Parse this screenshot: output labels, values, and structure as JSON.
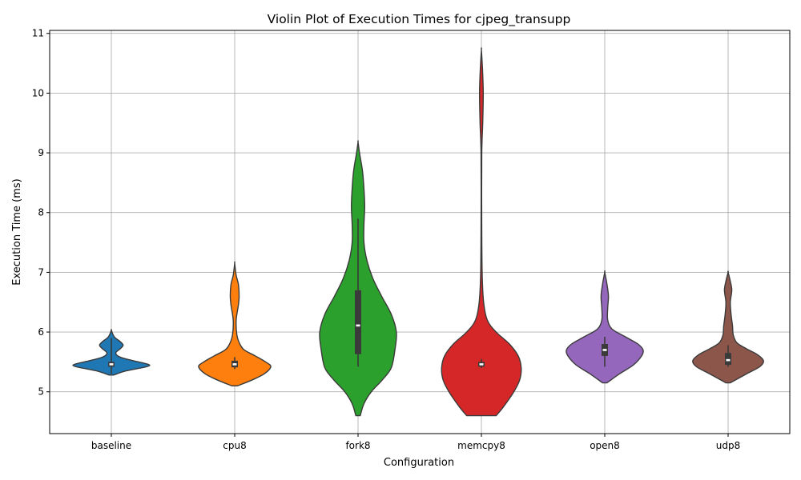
{
  "chart_data": {
    "type": "violin",
    "title": "Violin Plot of Execution Times for cjpeg_transupp",
    "xlabel": "Configuration",
    "ylabel": "Execution Time (ms)",
    "ylim": [
      4.3,
      11.05
    ],
    "yticks": [
      5,
      6,
      7,
      8,
      9,
      10,
      11
    ],
    "grid": true,
    "categories": [
      "baseline",
      "cpu8",
      "fork8",
      "memcpy8",
      "open8",
      "udp8"
    ],
    "series": [
      {
        "category": "baseline",
        "color": "#1f77b4",
        "min": 5.3,
        "q1": 5.42,
        "median": 5.46,
        "q3": 5.5,
        "max": 5.9,
        "range": [
          5.28,
          6.03
        ],
        "density": [
          [
            5.28,
            0.03
          ],
          [
            5.35,
            0.2
          ],
          [
            5.42,
            0.48
          ],
          [
            5.46,
            0.5
          ],
          [
            5.52,
            0.3
          ],
          [
            5.58,
            0.12
          ],
          [
            5.65,
            0.06
          ],
          [
            5.72,
            0.12
          ],
          [
            5.78,
            0.16
          ],
          [
            5.84,
            0.12
          ],
          [
            5.92,
            0.04
          ],
          [
            6.03,
            0.0
          ]
        ]
      },
      {
        "category": "cpu8",
        "color": "#ff7f0e",
        "min": 5.38,
        "q1": 5.41,
        "median": 5.46,
        "q3": 5.52,
        "max": 5.58,
        "range": [
          5.1,
          7.15
        ],
        "density": [
          [
            5.1,
            0.04
          ],
          [
            5.2,
            0.24
          ],
          [
            5.3,
            0.4
          ],
          [
            5.42,
            0.49
          ],
          [
            5.5,
            0.42
          ],
          [
            5.6,
            0.28
          ],
          [
            5.7,
            0.13
          ],
          [
            5.8,
            0.07
          ],
          [
            5.95,
            0.03
          ],
          [
            6.2,
            0.02
          ],
          [
            6.45,
            0.05
          ],
          [
            6.6,
            0.06
          ],
          [
            6.8,
            0.05
          ],
          [
            6.95,
            0.02
          ],
          [
            7.15,
            0.0
          ]
        ]
      },
      {
        "category": "fork8",
        "color": "#2ca02c",
        "min": 5.42,
        "q1": 5.63,
        "median": 6.11,
        "q3": 6.7,
        "max": 7.9,
        "range": [
          4.6,
          9.18
        ],
        "density": [
          [
            4.6,
            0.03
          ],
          [
            4.8,
            0.08
          ],
          [
            5.0,
            0.18
          ],
          [
            5.2,
            0.33
          ],
          [
            5.4,
            0.45
          ],
          [
            5.7,
            0.5
          ],
          [
            6.0,
            0.52
          ],
          [
            6.3,
            0.45
          ],
          [
            6.6,
            0.32
          ],
          [
            6.9,
            0.2
          ],
          [
            7.2,
            0.12
          ],
          [
            7.5,
            0.08
          ],
          [
            7.8,
            0.08
          ],
          [
            8.1,
            0.09
          ],
          [
            8.4,
            0.08
          ],
          [
            8.7,
            0.06
          ],
          [
            9.0,
            0.02
          ],
          [
            9.18,
            0.0
          ]
        ]
      },
      {
        "category": "memcpy8",
        "color": "#d62728",
        "min": 5.4,
        "q1": 5.42,
        "median": 5.46,
        "q3": 5.5,
        "max": 5.55,
        "range": [
          4.6,
          10.72
        ],
        "density": [
          [
            4.6,
            0.2
          ],
          [
            4.75,
            0.3
          ],
          [
            5.0,
            0.44
          ],
          [
            5.2,
            0.52
          ],
          [
            5.4,
            0.54
          ],
          [
            5.6,
            0.5
          ],
          [
            5.8,
            0.38
          ],
          [
            6.0,
            0.2
          ],
          [
            6.2,
            0.08
          ],
          [
            6.5,
            0.03
          ],
          [
            7.0,
            0.01
          ],
          [
            8.0,
            0.004
          ],
          [
            9.0,
            0.005
          ],
          [
            9.5,
            0.018
          ],
          [
            10.0,
            0.025
          ],
          [
            10.4,
            0.015
          ],
          [
            10.72,
            0.0
          ]
        ]
      },
      {
        "category": "open8",
        "color": "#9467bd",
        "min": 5.42,
        "q1": 5.6,
        "median": 5.7,
        "q3": 5.8,
        "max": 5.92,
        "range": [
          5.15,
          7.0
        ],
        "density": [
          [
            5.15,
            0.03
          ],
          [
            5.3,
            0.2
          ],
          [
            5.45,
            0.39
          ],
          [
            5.6,
            0.5
          ],
          [
            5.7,
            0.52
          ],
          [
            5.8,
            0.45
          ],
          [
            5.92,
            0.28
          ],
          [
            6.05,
            0.1
          ],
          [
            6.2,
            0.04
          ],
          [
            6.4,
            0.04
          ],
          [
            6.6,
            0.05
          ],
          [
            6.8,
            0.03
          ],
          [
            7.0,
            0.0
          ]
        ]
      },
      {
        "category": "udp8",
        "color": "#8c564b",
        "min": 5.42,
        "q1": 5.45,
        "median": 5.53,
        "q3": 5.65,
        "max": 5.78,
        "range": [
          5.15,
          7.0
        ],
        "density": [
          [
            5.15,
            0.03
          ],
          [
            5.3,
            0.25
          ],
          [
            5.42,
            0.43
          ],
          [
            5.52,
            0.48
          ],
          [
            5.62,
            0.4
          ],
          [
            5.72,
            0.25
          ],
          [
            5.82,
            0.12
          ],
          [
            5.95,
            0.07
          ],
          [
            6.1,
            0.06
          ],
          [
            6.3,
            0.04
          ],
          [
            6.5,
            0.03
          ],
          [
            6.7,
            0.05
          ],
          [
            6.85,
            0.03
          ],
          [
            7.0,
            0.0
          ]
        ]
      }
    ]
  }
}
